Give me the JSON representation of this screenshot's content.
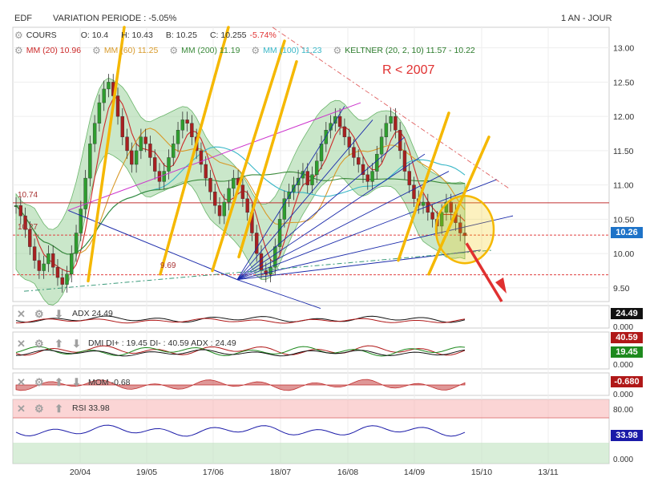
{
  "header": {
    "symbol": "EDF",
    "variation": "VARIATION PERIODE : -5.05%",
    "period": "1 AN - JOUR"
  },
  "quote": {
    "label": "COURS",
    "open": "O: 10.4",
    "high": "H: 10.43",
    "low": "B: 10.25",
    "close_label": "C: 10.255",
    "change": "-5.74%"
  },
  "indicators": [
    {
      "label": "MM (20) 10.96",
      "color": "#cc2a2a"
    },
    {
      "label": "MM (60) 11.25",
      "color": "#d89a2a"
    },
    {
      "label": "MM (200) 11.19",
      "color": "#3a8a3a"
    },
    {
      "label": "MM (100) 11.23",
      "color": "#39b7c7"
    },
    {
      "label": "KELTNER (20, 2, 10) 11.57 - 10.22",
      "color": "#2a7a2a"
    }
  ],
  "annotation": "R < 2007",
  "levels": {
    "r1074": "10.74",
    "r1027": "10.27",
    "r969": "9.69"
  },
  "last_price_badge": "10.26",
  "panels": {
    "adx": {
      "label": "ADX 24.49",
      "badges": [
        "24.49"
      ],
      "zero": "0.000"
    },
    "dmi": {
      "label": "DMI DI+ : 19.45 DI- : 40.59 ADX : 24.49",
      "badges": [
        "40.59",
        "19.45"
      ],
      "zero": "0.000"
    },
    "mom": {
      "label": "MOM -0.68",
      "badges": [
        "-0.680"
      ],
      "zero": "0.000"
    },
    "rsi": {
      "label": "RSI 33.98",
      "badges": [
        "33.98"
      ],
      "level80": "80.00",
      "zero": "0.000"
    }
  },
  "colors": {
    "up": "#2e9e2e",
    "down": "#a82020",
    "keltner_fill": "#9ed49e",
    "fan": "#1a2aaa",
    "trend_yellow": "#f5b800",
    "arrow": "#e03030"
  },
  "chart_data": {
    "type": "candlestick",
    "y_ticks": [
      "13.00",
      "12.50",
      "12.00",
      "11.50",
      "11.00",
      "10.50",
      "10.00",
      "9.50"
    ],
    "ylim": [
      9.3,
      13.3
    ],
    "x_ticks": [
      "20/04",
      "19/05",
      "17/06",
      "18/07",
      "16/08",
      "14/09",
      "15/10",
      "13/11"
    ],
    "closes": [
      10.7,
      10.55,
      10.35,
      10.1,
      9.9,
      9.75,
      9.85,
      10.0,
      9.8,
      9.65,
      9.55,
      9.7,
      10.0,
      10.3,
      10.65,
      11.1,
      11.6,
      11.9,
      12.2,
      12.4,
      12.5,
      12.3,
      12.0,
      11.7,
      11.5,
      11.3,
      11.5,
      11.7,
      11.6,
      11.4,
      11.2,
      11.05,
      11.2,
      11.4,
      11.6,
      11.8,
      11.95,
      11.9,
      11.7,
      11.5,
      11.3,
      11.1,
      10.9,
      10.7,
      10.55,
      10.75,
      10.95,
      11.1,
      11.0,
      10.8,
      10.6,
      10.3,
      10.0,
      9.75,
      9.7,
      9.8,
      10.1,
      10.5,
      10.8,
      10.9,
      11.0,
      11.1,
      11.2,
      11.0,
      11.15,
      11.35,
      11.6,
      11.8,
      11.9,
      12.0,
      11.85,
      11.7,
      11.55,
      11.4,
      11.3,
      11.15,
      11.05,
      11.2,
      11.45,
      11.7,
      11.9,
      12.0,
      11.8,
      11.5,
      11.2,
      11.0,
      10.8,
      10.7,
      10.75,
      10.6,
      10.5,
      10.4,
      10.6,
      10.75,
      10.6,
      10.45,
      10.3,
      10.26
    ]
  }
}
